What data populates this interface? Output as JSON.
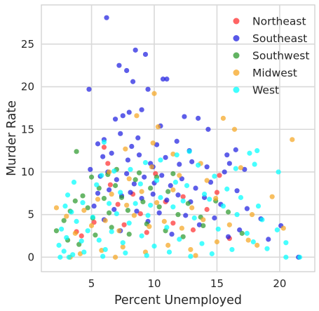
{
  "chart_data": {
    "type": "scatter",
    "title": "",
    "xlabel": "Percent Unemployed",
    "ylabel": "Murder Rate",
    "xlim": [
      1.0,
      22.8
    ],
    "ylim": [
      -1.7,
      29.6
    ],
    "xticks": [
      5,
      10,
      15,
      20
    ],
    "yticks": [
      0,
      5,
      10,
      15,
      20,
      25
    ],
    "grid": true,
    "legend_position": "top-right",
    "series": [
      {
        "name": "Northeast",
        "color": "#ff3030",
        "points": [
          [
            4.2,
            2.5
          ],
          [
            5.2,
            4.1
          ],
          [
            6.0,
            12.9
          ],
          [
            6.5,
            8.5
          ],
          [
            7.1,
            6.2
          ],
          [
            7.6,
            3.8
          ],
          [
            8.3,
            7.4
          ],
          [
            8.9,
            5.1
          ],
          [
            9.4,
            2.9
          ],
          [
            10.1,
            9.8
          ],
          [
            10.9,
            6.5
          ],
          [
            11.5,
            4.0
          ],
          [
            12.3,
            7.1
          ],
          [
            13.1,
            3.2
          ],
          [
            14.2,
            5.6
          ],
          [
            15.2,
            9.6
          ],
          [
            15.0,
            7.6
          ],
          [
            16.0,
            2.2
          ],
          [
            3.8,
            3.0
          ],
          [
            6.3,
            11.0
          ]
        ]
      },
      {
        "name": "Southeast",
        "color": "#2020e0",
        "points": [
          [
            6.2,
            28.1
          ],
          [
            8.5,
            24.3
          ],
          [
            9.3,
            23.8
          ],
          [
            7.8,
            21.9
          ],
          [
            8.3,
            20.6
          ],
          [
            4.8,
            19.7
          ],
          [
            7.2,
            22.5
          ],
          [
            10.7,
            20.9
          ],
          [
            11.0,
            20.9
          ],
          [
            9.5,
            19.7
          ],
          [
            8.0,
            17.0
          ],
          [
            6.9,
            16.2
          ],
          [
            7.5,
            16.6
          ],
          [
            9.0,
            17.3
          ],
          [
            10.5,
            15.4
          ],
          [
            12.4,
            16.5
          ],
          [
            13.5,
            16.3
          ],
          [
            14.3,
            15.0
          ],
          [
            7.3,
            14.5
          ],
          [
            6.0,
            13.8
          ],
          [
            5.5,
            13.3
          ],
          [
            8.7,
            14.0
          ],
          [
            10.2,
            13.2
          ],
          [
            11.8,
            13.6
          ],
          [
            12.8,
            12.5
          ],
          [
            15.8,
            12.0
          ],
          [
            16.0,
            11.0
          ],
          [
            16.5,
            12.6
          ],
          [
            5.9,
            11.8
          ],
          [
            6.6,
            12.2
          ],
          [
            7.9,
            11.4
          ],
          [
            8.8,
            12.0
          ],
          [
            9.7,
            11.0
          ],
          [
            10.9,
            11.7
          ],
          [
            12.0,
            10.9
          ],
          [
            13.0,
            11.2
          ],
          [
            14.2,
            10.6
          ],
          [
            15.6,
            10.0
          ],
          [
            17.2,
            10.3
          ],
          [
            4.9,
            10.3
          ],
          [
            5.7,
            9.5
          ],
          [
            6.3,
            10.0
          ],
          [
            7.0,
            9.1
          ],
          [
            7.8,
            9.8
          ],
          [
            8.4,
            8.6
          ],
          [
            9.2,
            9.4
          ],
          [
            10.0,
            8.7
          ],
          [
            10.6,
            9.6
          ],
          [
            11.3,
            8.4
          ],
          [
            12.2,
            9.2
          ],
          [
            13.3,
            8.1
          ],
          [
            14.5,
            8.8
          ],
          [
            16.6,
            7.8
          ],
          [
            5.5,
            7.5
          ],
          [
            6.4,
            7.9
          ],
          [
            7.4,
            7.2
          ],
          [
            8.1,
            7.6
          ],
          [
            9.0,
            6.9
          ],
          [
            9.9,
            7.4
          ],
          [
            11.0,
            6.7
          ],
          [
            11.9,
            7.3
          ],
          [
            12.9,
            6.5
          ],
          [
            14.0,
            7.0
          ],
          [
            15.3,
            6.2
          ],
          [
            17.4,
            5.7
          ],
          [
            5.2,
            6.0
          ],
          [
            6.8,
            5.6
          ],
          [
            8.6,
            5.4
          ],
          [
            10.4,
            5.2
          ],
          [
            12.5,
            4.9
          ],
          [
            14.8,
            4.6
          ],
          [
            6.0,
            4.4
          ],
          [
            9.5,
            4.2
          ],
          [
            13.6,
            3.8
          ],
          [
            16.8,
            3.2
          ],
          [
            7.3,
            3.1
          ],
          [
            11.4,
            2.7
          ],
          [
            15.9,
            2.4
          ],
          [
            18.5,
            4.5
          ],
          [
            21.5,
            0.0
          ],
          [
            20.1,
            3.7
          ],
          [
            19.1,
            2.1
          ],
          [
            9.9,
            10.6
          ],
          [
            8.2,
            13.0
          ]
        ]
      },
      {
        "name": "Southwest",
        "color": "#2e9a2e",
        "points": [
          [
            3.8,
            12.4
          ],
          [
            2.2,
            3.1
          ],
          [
            2.8,
            4.3
          ],
          [
            3.3,
            5.4
          ],
          [
            3.7,
            6.6
          ],
          [
            4.3,
            7.2
          ],
          [
            4.7,
            5.8
          ],
          [
            5.1,
            4.6
          ],
          [
            5.6,
            8.1
          ],
          [
            6.0,
            6.9
          ],
          [
            6.4,
            5.2
          ],
          [
            6.9,
            8.4
          ],
          [
            7.4,
            7.0
          ],
          [
            7.9,
            5.5
          ],
          [
            8.5,
            9.1
          ],
          [
            9.1,
            6.5
          ],
          [
            9.7,
            8.1
          ],
          [
            10.4,
            5.9
          ],
          [
            11.1,
            7.7
          ],
          [
            11.9,
            5.0
          ],
          [
            12.7,
            6.3
          ],
          [
            13.7,
            4.7
          ],
          [
            14.9,
            6.6
          ],
          [
            15.9,
            5.3
          ],
          [
            17.0,
            2.8
          ],
          [
            3.1,
            2.0
          ],
          [
            4.0,
            1.5
          ],
          [
            5.3,
            2.6
          ],
          [
            6.6,
            3.5
          ],
          [
            8.0,
            2.7
          ],
          [
            9.4,
            3.9
          ],
          [
            10.9,
            3.1
          ],
          [
            12.3,
            2.4
          ],
          [
            13.9,
            3.7
          ],
          [
            6.3,
            9.7
          ],
          [
            7.0,
            10.3
          ],
          [
            8.8,
            9.9
          ],
          [
            10.2,
            9.4
          ],
          [
            11.5,
            9.8
          ],
          [
            5.0,
            9.4
          ]
        ]
      },
      {
        "name": "Midwest",
        "color": "#f5a623",
        "points": [
          [
            10.0,
            19.2
          ],
          [
            10.3,
            15.3
          ],
          [
            9.9,
            13.4
          ],
          [
            13.7,
            11.0
          ],
          [
            15.5,
            16.3
          ],
          [
            16.4,
            15.0
          ],
          [
            21.0,
            13.8
          ],
          [
            8.6,
            16.6
          ],
          [
            7.7,
            12.7
          ],
          [
            11.5,
            12.1
          ],
          [
            2.2,
            5.8
          ],
          [
            3.0,
            4.8
          ],
          [
            3.7,
            2.8
          ],
          [
            4.4,
            5.5
          ],
          [
            5.0,
            3.7
          ],
          [
            5.5,
            6.8
          ],
          [
            6.1,
            4.3
          ],
          [
            6.6,
            7.4
          ],
          [
            7.2,
            3.1
          ],
          [
            7.8,
            6.1
          ],
          [
            8.4,
            4.9
          ],
          [
            9.0,
            7.7
          ],
          [
            9.6,
            3.6
          ],
          [
            10.2,
            6.4
          ],
          [
            10.8,
            4.2
          ],
          [
            11.5,
            7.9
          ],
          [
            12.2,
            3.4
          ],
          [
            13.0,
            5.8
          ],
          [
            13.9,
            4.4
          ],
          [
            14.9,
            6.9
          ],
          [
            16.0,
            3.8
          ],
          [
            17.5,
            2.0
          ],
          [
            20.3,
            3.4
          ],
          [
            19.4,
            7.1
          ],
          [
            4.1,
            0.4
          ],
          [
            5.8,
            0.8
          ],
          [
            7.5,
            1.2
          ],
          [
            9.3,
            0.6
          ],
          [
            11.1,
            1.4
          ],
          [
            12.9,
            0.9
          ],
          [
            15.0,
            1.8
          ],
          [
            18.2,
            1.4
          ],
          [
            6.4,
            10.0
          ],
          [
            8.0,
            9.2
          ],
          [
            9.8,
            10.6
          ],
          [
            12.0,
            9.6
          ],
          [
            14.2,
            9.0
          ],
          [
            16.9,
            10.5
          ],
          [
            17.8,
            5.0
          ],
          [
            3.3,
            0.0
          ],
          [
            6.9,
            0.0
          ],
          [
            13.3,
            0.2
          ]
        ]
      },
      {
        "name": "West",
        "color": "#00ffff",
        "points": [
          [
            12.8,
            12.4
          ],
          [
            17.6,
            12.2
          ],
          [
            18.2,
            12.5
          ],
          [
            19.9,
            10.0
          ],
          [
            18.0,
            10.9
          ],
          [
            16.5,
            10.4
          ],
          [
            14.8,
            9.5
          ],
          [
            13.5,
            10.8
          ],
          [
            11.8,
            12.0
          ],
          [
            10.5,
            11.4
          ],
          [
            9.3,
            11.1
          ],
          [
            6.0,
            13.5
          ],
          [
            8.1,
            10.3
          ],
          [
            6.8,
            10.1
          ],
          [
            5.4,
            8.5
          ],
          [
            3.1,
            7.3
          ],
          [
            2.9,
            6.0
          ],
          [
            3.4,
            5.3
          ],
          [
            3.8,
            4.2
          ],
          [
            2.6,
            3.3
          ],
          [
            3.0,
            2.3
          ],
          [
            2.4,
            1.4
          ],
          [
            2.8,
            0.7
          ],
          [
            3.5,
            0.3
          ],
          [
            4.2,
            1.9
          ],
          [
            4.7,
            3.1
          ],
          [
            5.1,
            4.7
          ],
          [
            5.6,
            2.0
          ],
          [
            6.1,
            0.9
          ],
          [
            6.6,
            3.0
          ],
          [
            7.0,
            5.1
          ],
          [
            7.5,
            1.7
          ],
          [
            8.0,
            4.0
          ],
          [
            8.5,
            6.3
          ],
          [
            9.0,
            2.5
          ],
          [
            9.5,
            4.9
          ],
          [
            10.0,
            1.3
          ],
          [
            10.5,
            7.0
          ],
          [
            11.0,
            3.5
          ],
          [
            11.5,
            5.9
          ],
          [
            12.0,
            2.1
          ],
          [
            12.6,
            8.4
          ],
          [
            13.2,
            4.6
          ],
          [
            13.8,
            1.6
          ],
          [
            14.4,
            6.8
          ],
          [
            15.1,
            3.3
          ],
          [
            15.8,
            8.0
          ],
          [
            16.6,
            5.0
          ],
          [
            17.4,
            2.8
          ],
          [
            18.3,
            6.0
          ],
          [
            19.0,
            1.0
          ],
          [
            19.8,
            3.2
          ],
          [
            20.5,
            1.7
          ],
          [
            20.5,
            0.0
          ],
          [
            21.6,
            0.0
          ],
          [
            17.9,
            1.8
          ],
          [
            16.2,
            0.9
          ],
          [
            14.6,
            0.4
          ],
          [
            12.9,
            0.1
          ],
          [
            11.2,
            0.6
          ],
          [
            9.4,
            0.2
          ],
          [
            7.7,
            0.5
          ],
          [
            5.9,
            0.1
          ],
          [
            4.4,
            0.6
          ],
          [
            3.2,
            0.0
          ],
          [
            2.5,
            0.0
          ],
          [
            6.4,
            6.3
          ],
          [
            7.3,
            7.6
          ],
          [
            8.9,
            8.6
          ],
          [
            10.2,
            9.0
          ],
          [
            11.7,
            8.8
          ],
          [
            5.8,
            9.6
          ],
          [
            4.3,
            6.4
          ],
          [
            3.6,
            8.8
          ],
          [
            9.7,
            6.1
          ],
          [
            12.3,
            6.6
          ],
          [
            14.0,
            7.4
          ],
          [
            15.5,
            6.0
          ],
          [
            16.9,
            7.0
          ],
          [
            18.6,
            4.4
          ]
        ]
      }
    ]
  }
}
